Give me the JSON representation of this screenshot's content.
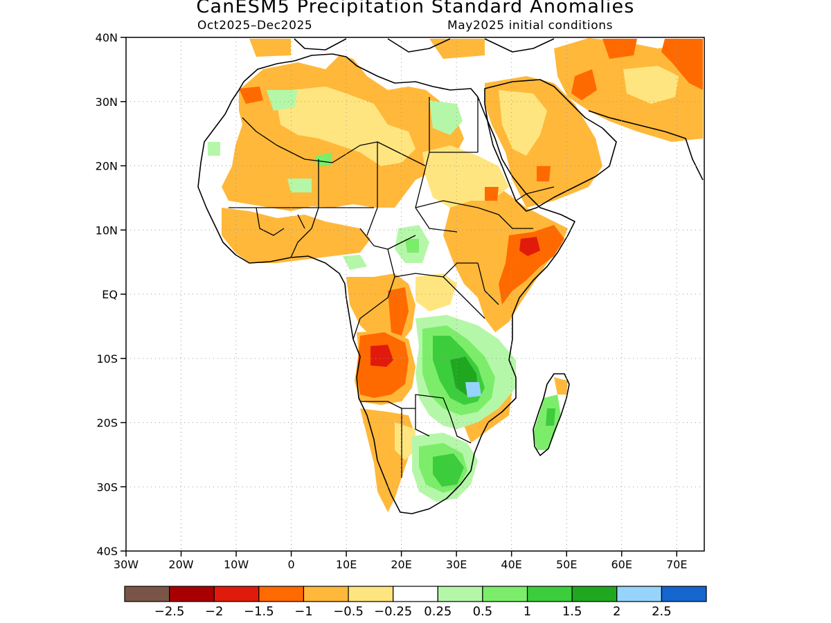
{
  "title": "CanESM5 Precipitation Standard Anomalies",
  "subtitle_left": "Oct2025–Dec2025",
  "subtitle_right": "May2025 initial conditions",
  "map": {
    "lat_labels": [
      "40N",
      "30N",
      "20N",
      "10N",
      "EQ",
      "10S",
      "20S",
      "30S",
      "40S"
    ],
    "lon_labels": [
      "30W",
      "20W",
      "10W",
      "0",
      "10E",
      "20E",
      "30E",
      "40E",
      "50E",
      "60E",
      "70E"
    ]
  },
  "colorbar": {
    "colors": [
      "#7a5547",
      "#a80000",
      "#e01b0b",
      "#ff6a00",
      "#ffb83a",
      "#ffe580",
      "#ffffff",
      "#b5f7a8",
      "#7ced6a",
      "#3ccd3c",
      "#1fa81f",
      "#96d4fb",
      "#1565cf"
    ],
    "labels": [
      "−2.5",
      "−2",
      "−1.5",
      "−1",
      "−0.5",
      "−0.25",
      "0.25",
      "0.5",
      "1",
      "1.5",
      "2",
      "2.5"
    ]
  }
}
